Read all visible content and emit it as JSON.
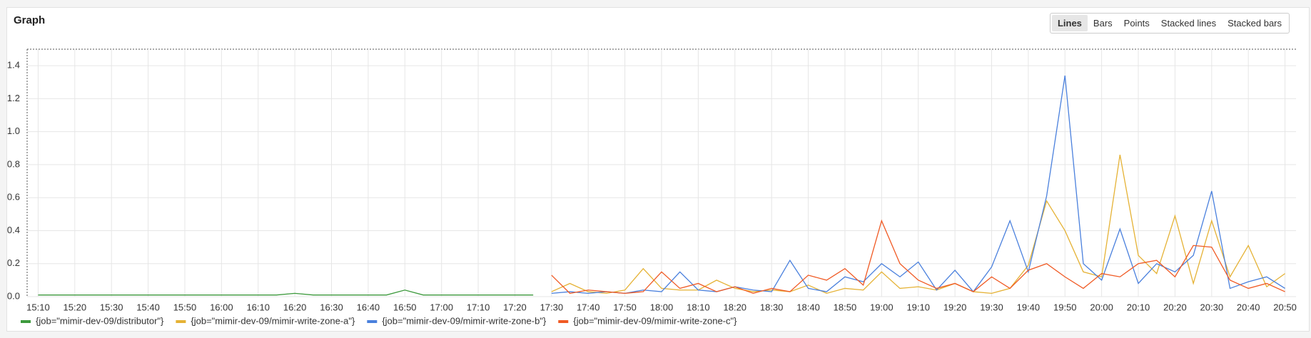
{
  "chart_data": {
    "type": "line",
    "title": "Graph",
    "view_modes": [
      {
        "label": "Lines",
        "active": true
      },
      {
        "label": "Bars",
        "active": false
      },
      {
        "label": "Points",
        "active": false
      },
      {
        "label": "Stacked lines",
        "active": false
      },
      {
        "label": "Stacked bars",
        "active": false
      }
    ],
    "x": [
      "15:10",
      "15:15",
      "15:20",
      "15:25",
      "15:30",
      "15:35",
      "15:40",
      "15:45",
      "15:50",
      "15:55",
      "16:00",
      "16:05",
      "16:10",
      "16:15",
      "16:20",
      "16:25",
      "16:30",
      "16:35",
      "16:40",
      "16:45",
      "16:50",
      "16:55",
      "17:00",
      "17:05",
      "17:10",
      "17:15",
      "17:20",
      "17:25",
      "17:30",
      "17:35",
      "17:40",
      "17:45",
      "17:50",
      "17:55",
      "18:00",
      "18:05",
      "18:10",
      "18:15",
      "18:20",
      "18:25",
      "18:30",
      "18:35",
      "18:40",
      "18:45",
      "18:50",
      "18:55",
      "19:00",
      "19:05",
      "19:10",
      "19:15",
      "19:20",
      "19:25",
      "19:30",
      "19:35",
      "19:40",
      "19:45",
      "19:50",
      "19:55",
      "20:00",
      "20:05",
      "20:10",
      "20:15",
      "20:20",
      "20:25",
      "20:30",
      "20:35",
      "20:40",
      "20:45",
      "20:50"
    ],
    "xlim": [
      "15:07",
      "20:53"
    ],
    "xticks": [
      "15:10",
      "15:20",
      "15:30",
      "15:40",
      "15:50",
      "16:00",
      "16:10",
      "16:20",
      "16:30",
      "16:40",
      "16:50",
      "17:00",
      "17:10",
      "17:20",
      "17:30",
      "17:40",
      "17:50",
      "18:00",
      "18:10",
      "18:20",
      "18:30",
      "18:40",
      "18:50",
      "19:00",
      "19:10",
      "19:20",
      "19:30",
      "19:40",
      "19:50",
      "20:00",
      "20:10",
      "20:20",
      "20:30",
      "20:40",
      "20:50"
    ],
    "ylim": [
      0,
      1.5
    ],
    "yticks": [
      {
        "value": 0,
        "label": "0.0"
      },
      {
        "value": 0.2,
        "label": "0.2"
      },
      {
        "value": 0.4,
        "label": "0.4"
      },
      {
        "value": 0.6,
        "label": "0.6"
      },
      {
        "value": 0.8,
        "label": "0.8"
      },
      {
        "value": 1,
        "label": "1.0"
      },
      {
        "value": 1.2,
        "label": "1.2"
      },
      {
        "value": 1.4,
        "label": "1.4"
      }
    ],
    "grid": true,
    "series": [
      {
        "name": "{job=\"mimir-dev-09/distributor\"}",
        "color": "#3d9a3d",
        "values": [
          0.01,
          0.01,
          0.01,
          0.01,
          0.01,
          0.01,
          0.01,
          0.01,
          0.01,
          0.01,
          0.01,
          0.01,
          0.01,
          0.01,
          0.02,
          0.01,
          0.01,
          0.01,
          0.01,
          0.01,
          0.04,
          0.01,
          0.01,
          0.01,
          0.01,
          0.01,
          0.01,
          0.01,
          null,
          null,
          null,
          null,
          null,
          null,
          null,
          null,
          null,
          null,
          null,
          null,
          null,
          null,
          null,
          null,
          null,
          null,
          null,
          null,
          null,
          null,
          null,
          null,
          null,
          null,
          null,
          null,
          null,
          null,
          null,
          null,
          null,
          null,
          null,
          null,
          null,
          null,
          null,
          null,
          null
        ]
      },
      {
        "name": "{job=\"mimir-dev-09/mimir-write-zone-a\"}",
        "color": "#e5b235",
        "values": [
          null,
          null,
          null,
          null,
          null,
          null,
          null,
          null,
          null,
          null,
          null,
          null,
          null,
          null,
          null,
          null,
          null,
          null,
          null,
          null,
          null,
          null,
          null,
          null,
          null,
          null,
          null,
          null,
          0.03,
          0.08,
          0.03,
          0.02,
          0.04,
          0.17,
          0.05,
          0.04,
          0.04,
          0.1,
          0.05,
          0.03,
          0.04,
          0.03,
          0.07,
          0.02,
          0.05,
          0.04,
          0.15,
          0.05,
          0.06,
          0.04,
          0.08,
          0.03,
          0.02,
          0.05,
          0.19,
          0.58,
          0.4,
          0.15,
          0.12,
          0.86,
          0.25,
          0.14,
          0.49,
          0.08,
          0.46,
          0.12,
          0.31,
          0.06,
          0.14
        ]
      },
      {
        "name": "{job=\"mimir-dev-09/mimir-write-zone-b\"}",
        "color": "#4a80dd",
        "values": [
          null,
          null,
          null,
          null,
          null,
          null,
          null,
          null,
          null,
          null,
          null,
          null,
          null,
          null,
          null,
          null,
          null,
          null,
          null,
          null,
          null,
          null,
          null,
          null,
          null,
          null,
          null,
          null,
          0.02,
          0.03,
          0.02,
          0.03,
          0.02,
          0.04,
          0.03,
          0.15,
          0.04,
          0.03,
          0.06,
          0.04,
          0.03,
          0.22,
          0.05,
          0.03,
          0.12,
          0.09,
          0.2,
          0.12,
          0.21,
          0.04,
          0.16,
          0.03,
          0.18,
          0.46,
          0.15,
          0.61,
          1.34,
          0.2,
          0.1,
          0.41,
          0.08,
          0.2,
          0.15,
          0.25,
          0.64,
          0.05,
          0.09,
          0.12,
          0.05
        ]
      },
      {
        "name": "{job=\"mimir-dev-09/mimir-write-zone-c\"}",
        "color": "#f05a24",
        "values": [
          null,
          null,
          null,
          null,
          null,
          null,
          null,
          null,
          null,
          null,
          null,
          null,
          null,
          null,
          null,
          null,
          null,
          null,
          null,
          null,
          null,
          null,
          null,
          null,
          null,
          null,
          null,
          null,
          0.13,
          0.02,
          0.04,
          0.03,
          0.02,
          0.03,
          0.15,
          0.05,
          0.08,
          0.03,
          0.06,
          0.02,
          0.05,
          0.03,
          0.13,
          0.1,
          0.17,
          0.07,
          0.46,
          0.2,
          0.1,
          0.05,
          0.08,
          0.03,
          0.12,
          0.05,
          0.16,
          0.2,
          0.12,
          0.05,
          0.14,
          0.12,
          0.2,
          0.22,
          0.12,
          0.31,
          0.3,
          0.1,
          0.05,
          0.08,
          0.03
        ]
      }
    ]
  }
}
